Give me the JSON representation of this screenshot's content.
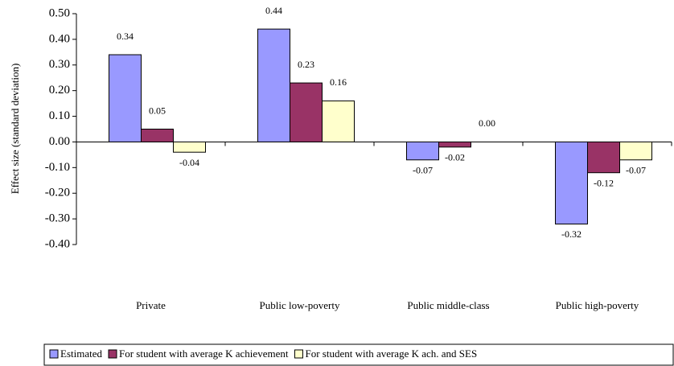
{
  "chart_data": {
    "type": "bar",
    "y_label": "Effect size (standard deviation)",
    "categories": [
      "Private",
      "Public low-poverty",
      "Public middle-class",
      "Public high-poverty"
    ],
    "series": [
      {
        "name": "Estimated",
        "color": "#9999ff",
        "values": [
          0.34,
          0.44,
          -0.07,
          -0.32
        ],
        "value_labels": [
          "0.34",
          "0.44",
          "-0.07",
          "-0.32"
        ]
      },
      {
        "name": "For student with average K achievement",
        "color": "#993366",
        "values": [
          0.05,
          0.23,
          -0.02,
          -0.12
        ],
        "value_labels": [
          "0.05",
          "0.23",
          "-0.02",
          "-0.12"
        ]
      },
      {
        "name": "For student with average K ach. and SES",
        "color": "#ffffcc",
        "values": [
          -0.04,
          0.16,
          0,
          -0.07
        ],
        "value_labels": [
          "-0.04",
          "0.16",
          "0.00",
          "-0.07"
        ]
      }
    ],
    "ylim": [
      -0.4,
      0.5
    ],
    "yticks": [
      {
        "value": -0.4,
        "label": "-0.40"
      },
      {
        "value": -0.3,
        "label": "-0.30"
      },
      {
        "value": -0.2,
        "label": "-0.20"
      },
      {
        "value": -0.1,
        "label": "-0.10"
      },
      {
        "value": 0,
        "label": "0.00"
      },
      {
        "value": 0.1,
        "label": "0.10"
      },
      {
        "value": 0.2,
        "label": "0.20"
      },
      {
        "value": 0.3,
        "label": "0.30"
      },
      {
        "value": 0.4,
        "label": "0.40"
      },
      {
        "value": 0.5,
        "label": "0.50"
      }
    ],
    "grid": false,
    "legend": "bottom"
  }
}
